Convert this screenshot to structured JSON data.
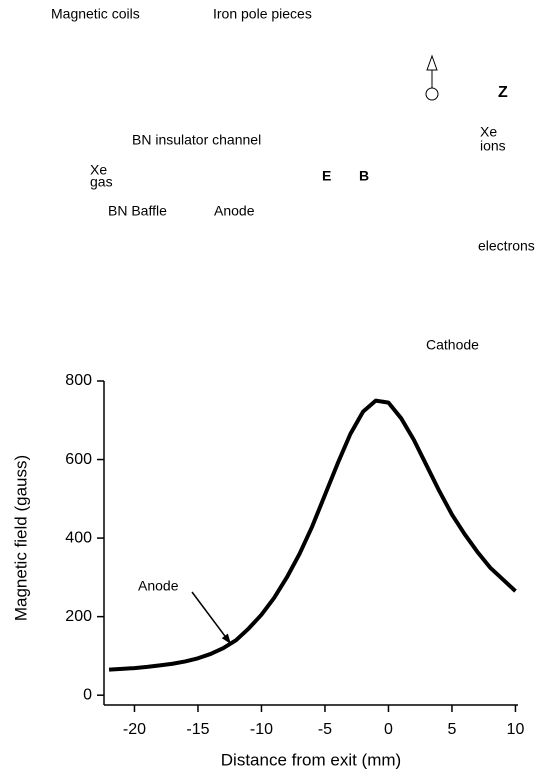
{
  "diagram": {
    "labels": {
      "magnetic_coils": "Magnetic coils",
      "iron_pole_pieces": "Iron pole pieces",
      "z": "Z",
      "bn_insulator_channel": "BN insulator channel",
      "xe_ions_1": "Xe",
      "xe_ions_2": "ions",
      "xe_gas_1": "Xe",
      "xe_gas_2": "gas",
      "e": "E",
      "b": "B",
      "bn_baffle": "BN Baffle",
      "anode": "Anode",
      "electrons": "electrons",
      "cathode": "Cathode"
    }
  },
  "chart_data": {
    "type": "line",
    "x_label": "Distance from exit (mm)",
    "y_label": "Magnetic field (gauss)",
    "x": [
      -22,
      -21,
      -20,
      -19,
      -18,
      -17,
      -16,
      -15,
      -14,
      -13,
      -12,
      -11,
      -10,
      -9,
      -8,
      -7,
      -6,
      -5,
      -4,
      -3,
      -2,
      -1,
      0,
      1,
      2,
      3,
      4,
      5,
      6,
      7,
      8,
      9,
      10
    ],
    "values": [
      65,
      67,
      69,
      72,
      76,
      80,
      86,
      94,
      105,
      120,
      140,
      170,
      205,
      248,
      300,
      360,
      430,
      510,
      590,
      665,
      722,
      750,
      745,
      705,
      650,
      585,
      520,
      460,
      410,
      365,
      325,
      295,
      265
    ],
    "color": "#000000",
    "xlim": [
      -22.4,
      10.2
    ],
    "ylim": [
      -25,
      800
    ],
    "xticks": [
      -20,
      -15,
      -10,
      -5,
      0,
      5,
      10
    ],
    "yticks": [
      0,
      200,
      400,
      600,
      800
    ],
    "annotation": {
      "text": "Anode",
      "x": -12.4,
      "y": 130
    }
  }
}
